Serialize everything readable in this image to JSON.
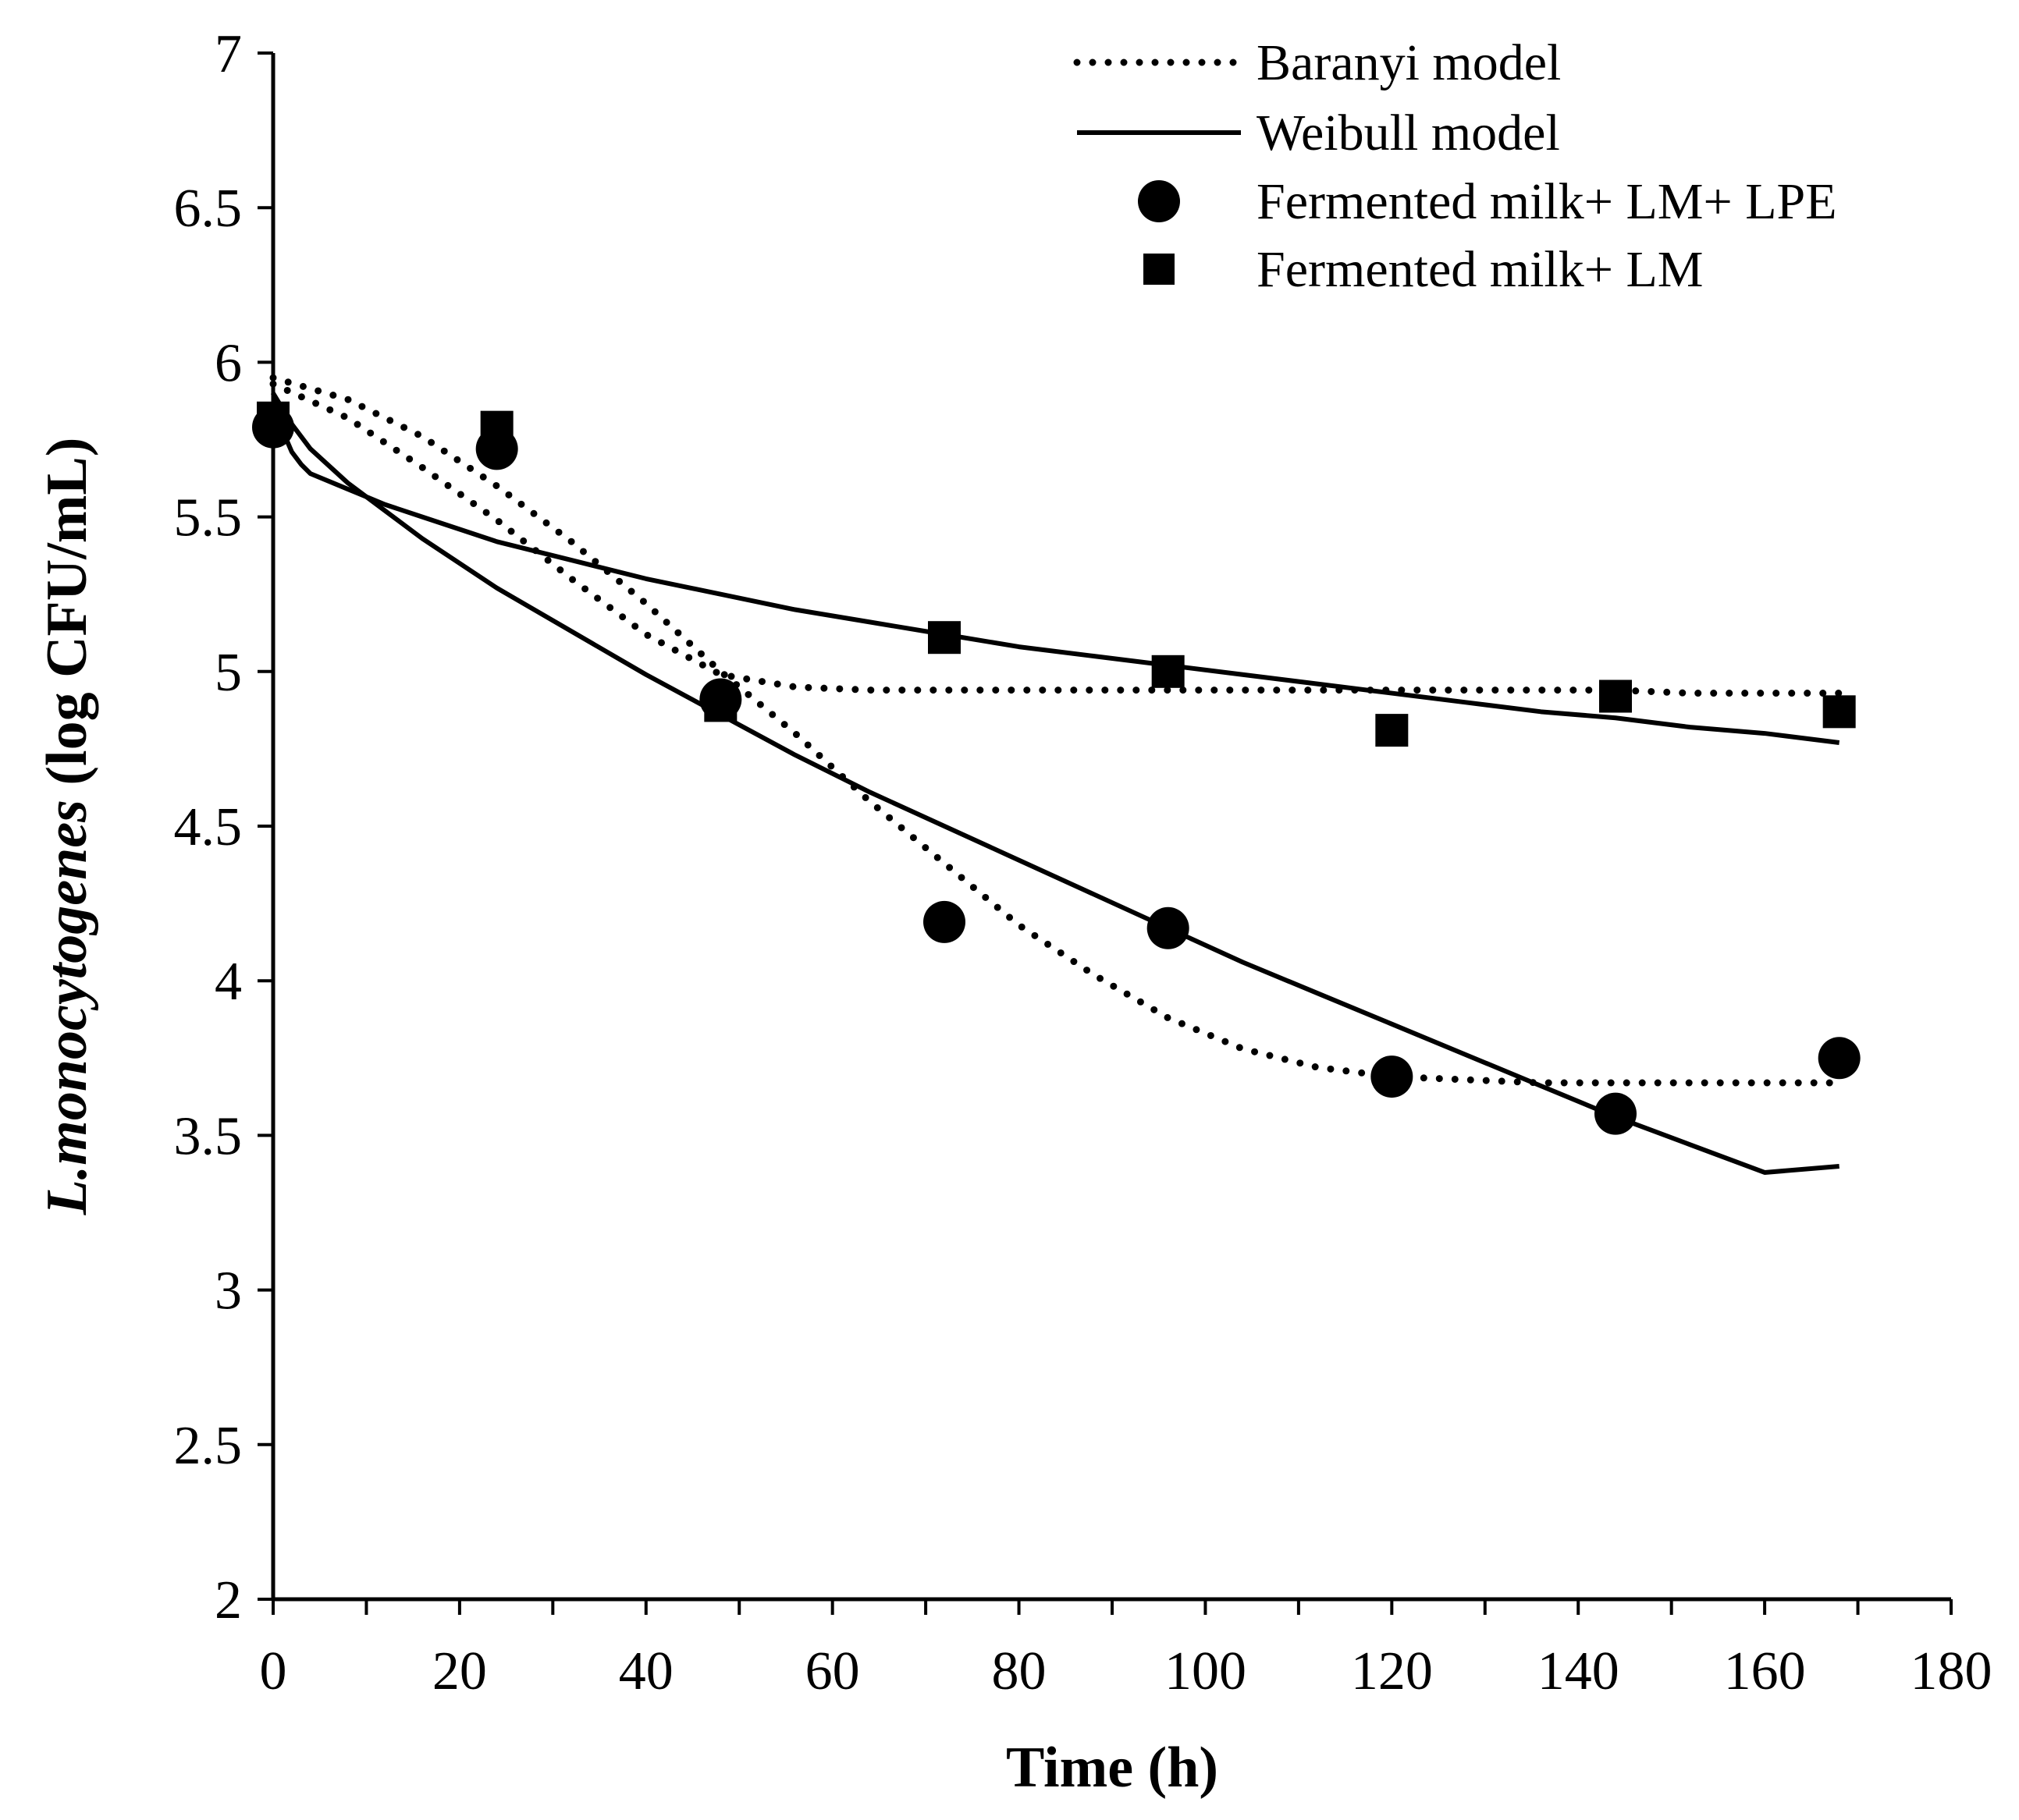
{
  "chart_data": {
    "type": "scatter",
    "title": "",
    "xlabel": "Time (h)",
    "ylabel": {
      "italic_part": "L.monocytogenes",
      "rest": " (log CFU/mL)"
    },
    "xlim": [
      0,
      180
    ],
    "ylim": [
      2,
      7
    ],
    "x_ticks": [
      "0",
      "20",
      "40",
      "60",
      "80",
      "100",
      "120",
      "140",
      "160",
      "180"
    ],
    "y_ticks": [
      "2",
      "2.5",
      "3",
      "3.5",
      "4",
      "4.5",
      "5",
      "5.5",
      "6",
      "6.5",
      "7"
    ],
    "grid": false,
    "legend_position": "top-right",
    "legend": [
      {
        "label": "Baranyi model",
        "marker": "dotted-line"
      },
      {
        "label": "Weibull model",
        "marker": "solid-line"
      },
      {
        "label": "Fermented milk+ LM+ LPE",
        "marker": "circle"
      },
      {
        "label": "Fermented milk+ LM",
        "marker": "square"
      }
    ],
    "series": [
      {
        "name": "Fermented milk+ LM+ LPE",
        "kind": "points",
        "marker": "circle",
        "x": [
          0,
          24,
          48,
          72,
          96,
          120,
          144,
          168
        ],
        "y": [
          5.79,
          5.72,
          4.91,
          4.19,
          4.17,
          3.69,
          3.57,
          3.75
        ]
      },
      {
        "name": "Fermented milk+ LM",
        "kind": "points",
        "marker": "square",
        "x": [
          0,
          24,
          48,
          72,
          96,
          120,
          144,
          168
        ],
        "y": [
          5.82,
          5.79,
          4.89,
          5.11,
          5.0,
          4.81,
          4.92,
          4.87
        ]
      },
      {
        "name": "Baranyi model",
        "kind": "line",
        "style": "dotted",
        "fit_of": "Fermented milk+ LM+ LPE",
        "x": [
          0,
          8,
          16,
          24,
          32,
          40,
          48,
          56,
          64,
          72,
          80,
          88,
          96,
          104,
          112,
          120,
          128,
          136,
          144,
          152,
          160,
          168
        ],
        "y": [
          5.95,
          5.88,
          5.76,
          5.6,
          5.42,
          5.22,
          5.0,
          4.8,
          4.58,
          4.38,
          4.18,
          4.02,
          3.88,
          3.78,
          3.72,
          3.69,
          3.68,
          3.67,
          3.67,
          3.67,
          3.67,
          3.67
        ]
      },
      {
        "name": "Baranyi model",
        "kind": "line",
        "style": "dotted",
        "fit_of": "Fermented milk+ LM",
        "x": [
          0,
          8,
          16,
          24,
          32,
          40,
          48,
          56,
          64,
          72,
          80,
          88,
          96,
          104,
          112,
          120,
          128,
          136,
          144,
          152,
          160,
          168
        ],
        "y": [
          5.93,
          5.82,
          5.66,
          5.49,
          5.3,
          5.12,
          4.99,
          4.95,
          4.94,
          4.94,
          4.94,
          4.94,
          4.94,
          4.94,
          4.94,
          4.94,
          4.94,
          4.94,
          4.94,
          4.93,
          4.93,
          4.93
        ]
      },
      {
        "name": "Weibull model",
        "kind": "line",
        "style": "solid",
        "fit_of": "Fermented milk+ LM+ LPE",
        "x": [
          0,
          1,
          2,
          4,
          8,
          12,
          16,
          24,
          32,
          40,
          48,
          56,
          64,
          72,
          80,
          88,
          96,
          104,
          112,
          120,
          128,
          136,
          144,
          152,
          160,
          168
        ],
        "y": [
          5.9,
          5.85,
          5.8,
          5.72,
          5.61,
          5.52,
          5.43,
          5.27,
          5.13,
          4.99,
          4.86,
          4.73,
          4.61,
          4.5,
          4.39,
          4.28,
          4.17,
          4.06,
          3.96,
          3.86,
          3.76,
          3.66,
          3.56,
          3.47,
          3.38,
          3.4
        ]
      },
      {
        "name": "Weibull model",
        "kind": "line",
        "style": "solid",
        "fit_of": "Fermented milk+ LM",
        "x": [
          0,
          1,
          2,
          3,
          4,
          8,
          12,
          16,
          24,
          32,
          40,
          48,
          56,
          64,
          72,
          80,
          88,
          96,
          104,
          112,
          120,
          128,
          136,
          144,
          152,
          160,
          168
        ],
        "y": [
          5.9,
          5.78,
          5.71,
          5.67,
          5.64,
          5.59,
          5.54,
          5.5,
          5.42,
          5.36,
          5.3,
          5.25,
          5.2,
          5.16,
          5.12,
          5.08,
          5.05,
          5.02,
          4.99,
          4.96,
          4.93,
          4.9,
          4.87,
          4.85,
          4.82,
          4.8,
          4.77
        ]
      }
    ]
  }
}
